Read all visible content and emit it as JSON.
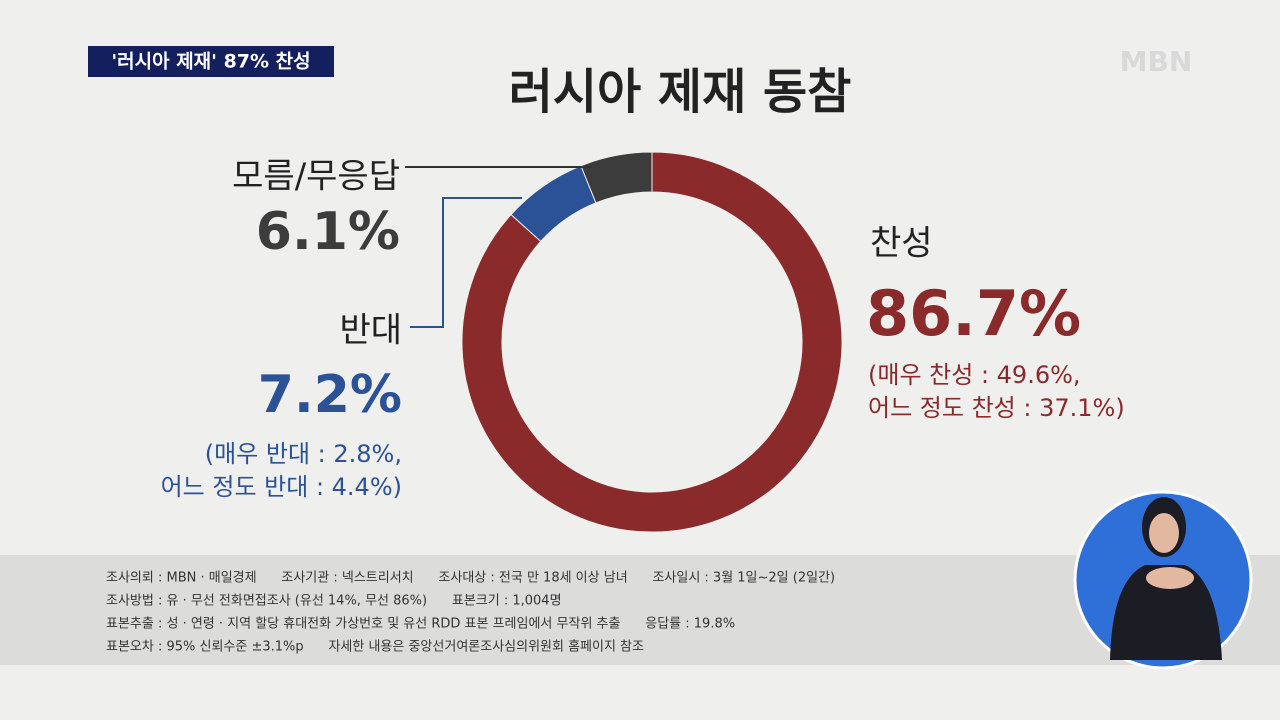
{
  "header": {
    "caption": "'러시아 제재' 87% 찬성",
    "logo": "MBN"
  },
  "chart_data": {
    "type": "pie",
    "donut": true,
    "title": "러시아 제재 동참",
    "categories": [
      "찬성",
      "반대",
      "모름/무응답"
    ],
    "values": [
      86.7,
      7.2,
      6.1
    ],
    "value_labels": [
      "86.7%",
      "7.2%",
      "6.1%"
    ],
    "colors": [
      "#8a2a2b",
      "#2b5296",
      "#3c3c3c"
    ],
    "annotations": [
      [
        "(매우 찬성 : 49.6%,",
        "어느 정도 찬성 : 37.1%)"
      ],
      [
        "(매우 반대 : 2.8%,",
        "어느 정도 반대 : 4.4%)"
      ]
    ]
  },
  "footer": {
    "lines": [
      "조사의뢰 : MBN · 매일경제      조사기관 : 넥스트리서치      조사대상 : 전국 만 18세 이상 남녀      조사일시 : 3월 1일~2일 (2일간)",
      "조사방법 : 유 · 무선 전화면접조사 (유선 14%, 무선 86%)      표본크기 : 1,004명",
      "표본추출 : 성 · 연령 · 지역 할당 휴대전화 가상번호 및 유선 RDD 표본 프레임에서 무작위 추출      응답률 : 19.8%",
      "표본오차 : 95% 신뢰수준 ±3.1%p      자세한 내용은 중앙선거여론조사심의위원회 홈페이지 참조"
    ]
  }
}
